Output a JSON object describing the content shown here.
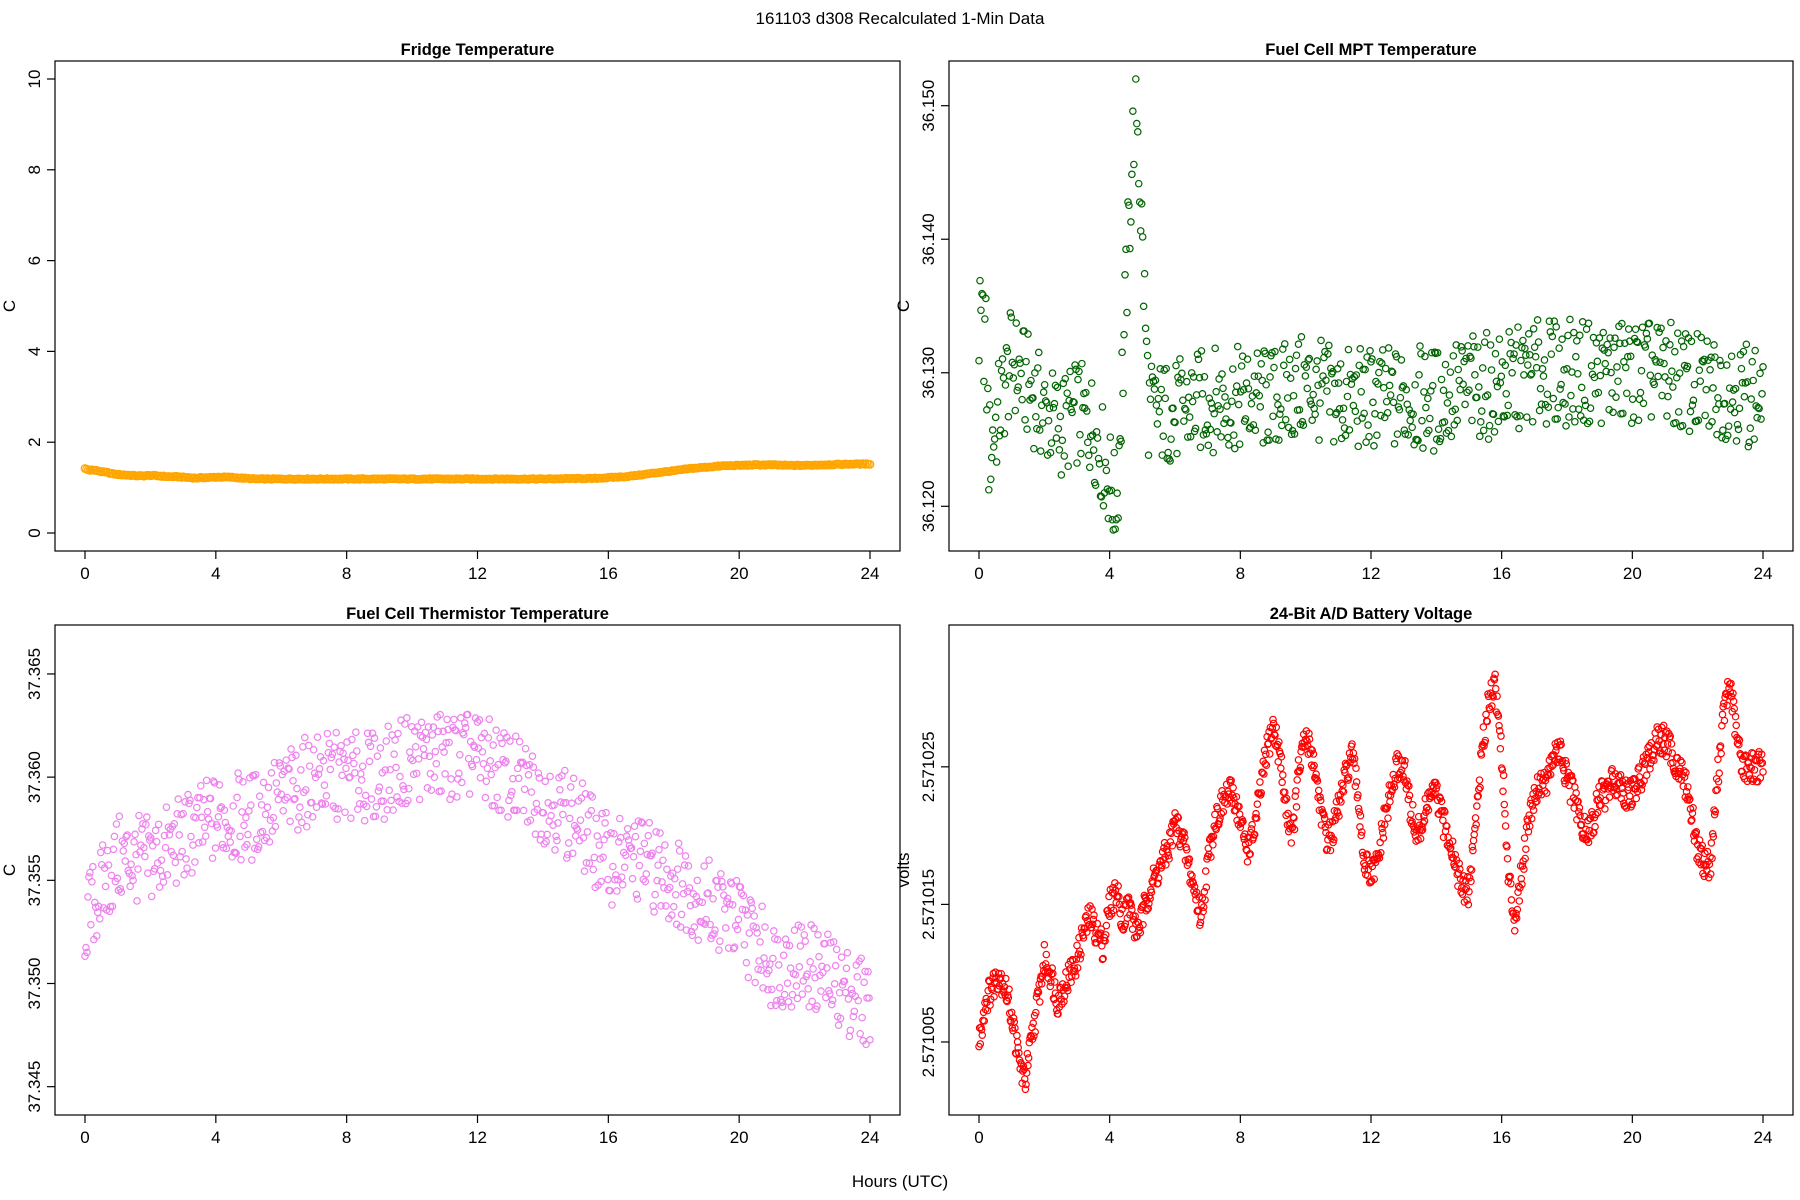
{
  "title": "161103   d308   Recalculated 1-Min Data",
  "shared_xlabel": "Hours (UTC)",
  "chart_data": [
    {
      "type": "scatter",
      "title": "Fridge Temperature",
      "xlabel": "Hours (UTC)",
      "ylabel": "C",
      "xlim": [
        0,
        24
      ],
      "ylim": [
        0,
        10
      ],
      "xticks": [
        0,
        4,
        8,
        12,
        16,
        20,
        24
      ],
      "yticks": [
        0,
        2,
        4,
        6,
        8,
        10
      ],
      "ytick_labels": [
        "0",
        "2",
        "4",
        "6",
        "8",
        "10"
      ],
      "color": "#ffa500",
      "sample_spacing_hours": 0.05,
      "series": [
        {
          "name": "Fridge Temperature",
          "x": [
            0.0,
            0.1,
            0.2,
            0.3,
            0.4,
            0.5,
            0.6,
            0.7,
            0.8,
            0.9,
            1.0,
            1.2,
            1.4,
            1.6,
            1.8,
            2.0,
            2.2,
            2.4,
            2.6,
            2.8,
            3.0,
            3.2,
            3.4,
            3.6,
            3.8,
            4.0,
            4.2,
            4.4,
            4.6,
            4.8,
            5.0,
            5.2,
            5.4,
            5.6,
            5.8,
            6.0,
            7.0,
            8.0,
            9.0,
            10.0,
            11.0,
            12.0,
            13.0,
            14.0,
            15.0,
            15.5,
            16.0,
            16.5,
            17.0,
            17.5,
            18.0,
            18.5,
            19.0,
            19.5,
            20.0,
            20.5,
            21.0,
            21.5,
            22.0,
            22.5,
            23.0,
            23.5,
            24.0
          ],
          "y": [
            1.42,
            1.39,
            1.39,
            1.38,
            1.37,
            1.35,
            1.34,
            1.33,
            1.31,
            1.3,
            1.29,
            1.28,
            1.27,
            1.26,
            1.26,
            1.27,
            1.26,
            1.25,
            1.24,
            1.24,
            1.23,
            1.22,
            1.21,
            1.22,
            1.22,
            1.23,
            1.23,
            1.23,
            1.22,
            1.21,
            1.2,
            1.19,
            1.19,
            1.19,
            1.19,
            1.19,
            1.19,
            1.19,
            1.19,
            1.19,
            1.19,
            1.19,
            1.19,
            1.19,
            1.2,
            1.2,
            1.22,
            1.24,
            1.28,
            1.33,
            1.37,
            1.42,
            1.45,
            1.48,
            1.49,
            1.5,
            1.5,
            1.49,
            1.49,
            1.5,
            1.51,
            1.52,
            1.52
          ]
        }
      ]
    },
    {
      "type": "scatter",
      "title": "Fuel Cell MPT Temperature",
      "xlabel": "Hours (UTC)",
      "ylabel": "C",
      "xlim": [
        0,
        24
      ],
      "ylim": [
        36.118,
        36.152
      ],
      "xticks": [
        0,
        4,
        8,
        12,
        16,
        20,
        24
      ],
      "yticks": [
        36.12,
        36.13,
        36.14,
        36.15
      ],
      "ytick_labels": [
        "36.120",
        "36.130",
        "36.140",
        "36.150"
      ],
      "color": "#006400",
      "noise_center": 36.128,
      "noise_amplitude": 0.004,
      "sample_spacing_hours": 0.03,
      "series": [
        {
          "name": "Fuel Cell MPT Temperature",
          "x": [
            0.2,
            0.3,
            0.6,
            1.0,
            1.5,
            2.0,
            2.5,
            3.0,
            3.5,
            4.0,
            4.1,
            4.2,
            4.3,
            4.8,
            5.2,
            6.0,
            7.0,
            8.0,
            9.0,
            10.0,
            11.0,
            12.0,
            13.0,
            14.0,
            15.0,
            16.0,
            17.0,
            18.0,
            19.0,
            20.0,
            21.0,
            22.0,
            23.0,
            24.0
          ],
          "y": [
            36.133,
            36.124,
            36.127,
            36.131,
            36.129,
            36.127,
            36.126,
            36.127,
            36.126,
            36.122,
            36.121,
            36.119,
            36.125,
            36.152,
            36.127,
            36.127,
            36.128,
            36.128,
            36.128,
            36.129,
            36.128,
            36.128,
            36.128,
            36.128,
            36.129,
            36.129,
            36.13,
            36.13,
            36.13,
            36.13,
            36.13,
            36.129,
            36.129,
            36.128
          ]
        }
      ]
    },
    {
      "type": "scatter",
      "title": "Fuel Cell Thermistor Temperature",
      "xlabel": "Hours (UTC)",
      "ylabel": "C",
      "xlim": [
        0,
        24
      ],
      "ylim": [
        37.3445,
        37.3665
      ],
      "xticks": [
        0,
        4,
        8,
        12,
        16,
        20,
        24
      ],
      "yticks": [
        37.345,
        37.35,
        37.355,
        37.36,
        37.365
      ],
      "ytick_labels": [
        "37.345",
        "37.350",
        "37.355",
        "37.360",
        "37.365"
      ],
      "color": "#ee82ee",
      "noise_amplitude": 0.0022,
      "sample_spacing_hours": 0.03,
      "series": [
        {
          "name": "Fuel Cell Thermistor Temperature",
          "x": [
            0.0,
            1.0,
            2.0,
            3.0,
            4.0,
            5.0,
            6.0,
            7.0,
            8.0,
            9.0,
            10.0,
            11.0,
            12.0,
            13.0,
            14.0,
            15.0,
            16.0,
            17.0,
            18.0,
            19.0,
            20.0,
            21.0,
            22.0,
            23.0,
            24.0
          ],
          "y": [
            37.353,
            37.356,
            37.356,
            37.357,
            37.358,
            37.358,
            37.359,
            37.36,
            37.36,
            37.36,
            37.361,
            37.361,
            37.361,
            37.36,
            37.359,
            37.358,
            37.356,
            37.356,
            37.355,
            37.354,
            37.353,
            37.351,
            37.351,
            37.35,
            37.349
          ]
        }
      ]
    },
    {
      "type": "scatter",
      "title": "24-Bit A/D Battery Voltage",
      "xlabel": "Hours (UTC)",
      "ylabel": "volts",
      "xlim": [
        0,
        24
      ],
      "ylim": [
        2.571001,
        2.571034
      ],
      "xticks": [
        0,
        4,
        8,
        12,
        16,
        20,
        24
      ],
      "yticks": [
        2.571005,
        2.571015,
        2.571025
      ],
      "ytick_labels": [
        "2.571005",
        "2.571015",
        "2.571025"
      ],
      "color": "#ff0000",
      "sample_spacing_hours": 0.02,
      "series": [
        {
          "name": "24-Bit A/D Battery Voltage",
          "x": [
            0.0,
            0.2,
            0.4,
            0.6,
            0.8,
            1.0,
            1.2,
            1.4,
            1.6,
            1.8,
            2.0,
            2.2,
            2.4,
            2.6,
            2.8,
            3.0,
            3.2,
            3.4,
            3.6,
            3.8,
            4.0,
            4.2,
            4.4,
            4.6,
            4.8,
            5.0,
            5.2,
            5.4,
            5.6,
            5.8,
            6.0,
            6.2,
            6.4,
            6.6,
            6.8,
            7.0,
            7.2,
            7.4,
            7.6,
            7.8,
            8.0,
            8.2,
            8.4,
            8.6,
            8.8,
            9.0,
            9.2,
            9.4,
            9.6,
            9.8,
            10.0,
            10.2,
            10.4,
            10.6,
            10.8,
            11.0,
            11.2,
            11.4,
            11.6,
            11.8,
            12.0,
            12.2,
            12.4,
            12.6,
            12.8,
            13.0,
            13.2,
            13.4,
            13.6,
            13.8,
            14.0,
            14.2,
            14.4,
            14.6,
            14.8,
            15.0,
            15.2,
            15.4,
            15.6,
            15.8,
            16.0,
            16.2,
            16.4,
            16.6,
            16.8,
            17.0,
            17.2,
            17.4,
            17.6,
            17.8,
            18.0,
            18.2,
            18.4,
            18.6,
            18.8,
            19.0,
            19.2,
            19.4,
            19.6,
            19.8,
            20.0,
            20.2,
            20.4,
            20.6,
            20.8,
            21.0,
            21.2,
            21.4,
            21.6,
            21.8,
            22.0,
            22.2,
            22.4,
            22.6,
            22.8,
            23.0,
            23.2,
            23.4,
            23.6,
            23.8,
            24.0
          ],
          "y": [
            2.571005,
            2.571008,
            2.571009,
            2.57101,
            2.571009,
            2.571007,
            2.571004,
            2.571002,
            2.571005,
            2.571008,
            2.571011,
            2.57101,
            2.571008,
            2.571009,
            2.57101,
            2.571011,
            2.571013,
            2.571014,
            2.571013,
            2.571012,
            2.571015,
            2.571016,
            2.571014,
            2.571015,
            2.571013,
            2.571014,
            2.571016,
            2.571017,
            2.571018,
            2.571019,
            2.571021,
            2.57102,
            2.571018,
            2.571016,
            2.571014,
            2.571018,
            2.571021,
            2.571022,
            2.571023,
            2.571023,
            2.571021,
            2.571019,
            2.57102,
            2.571023,
            2.571026,
            2.571028,
            2.571026,
            2.571022,
            2.57102,
            2.571025,
            2.571027,
            2.571026,
            2.571023,
            2.57102,
            2.57102,
            2.571022,
            2.571024,
            2.571026,
            2.571023,
            2.571018,
            2.571017,
            2.571018,
            2.571021,
            2.571023,
            2.571025,
            2.571025,
            2.571022,
            2.57102,
            2.571021,
            2.571023,
            2.571023,
            2.571021,
            2.57102,
            2.571018,
            2.571016,
            2.571016,
            2.571021,
            2.571026,
            2.57103,
            2.571031,
            2.571026,
            2.571017,
            2.571014,
            2.571017,
            2.571021,
            2.571023,
            2.571024,
            2.571024,
            2.571026,
            2.571026,
            2.571024,
            2.571023,
            2.571021,
            2.57102,
            2.571021,
            2.571023,
            2.571023,
            2.571024,
            2.571024,
            2.571023,
            2.571023,
            2.571024,
            2.571025,
            2.571026,
            2.571027,
            2.571027,
            2.571026,
            2.571025,
            2.571024,
            2.571022,
            2.571019,
            2.571018,
            2.571018,
            2.571024,
            2.571029,
            2.571031,
            2.571027,
            2.571025,
            2.571025,
            2.571025,
            2.571025
          ]
        }
      ]
    }
  ]
}
